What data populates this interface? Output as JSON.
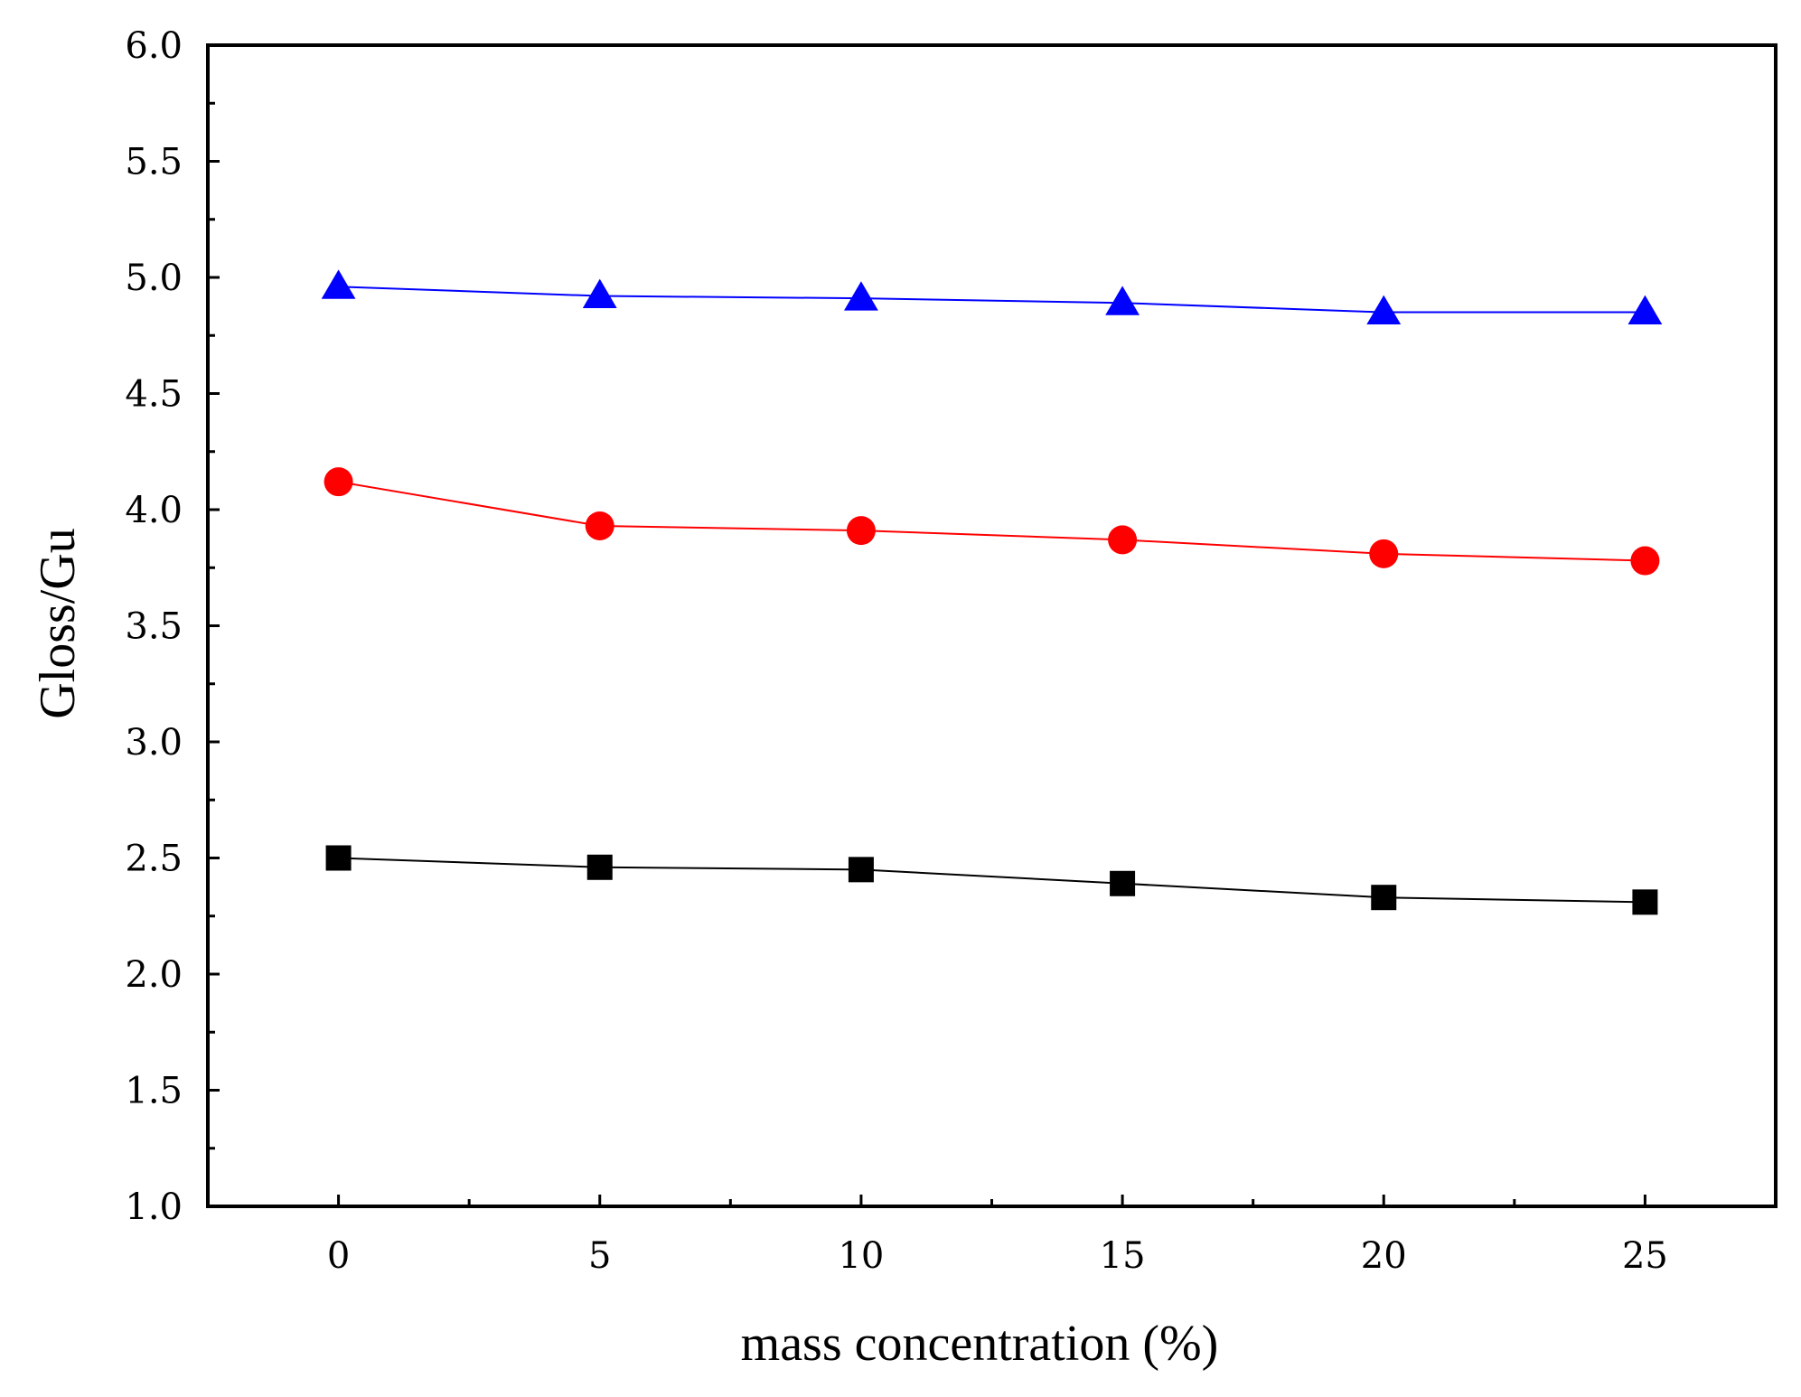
{
  "chart_data": {
    "type": "line",
    "title": "",
    "xlabel": "mass concentration (%)",
    "ylabel": "Gloss/Gu",
    "xlim": [
      -2.5,
      27.5
    ],
    "ylim": [
      1.0,
      6.0
    ],
    "x": [
      0,
      5,
      10,
      15,
      20,
      25
    ],
    "xticks": [
      "0",
      "5",
      "10",
      "15",
      "20",
      "25"
    ],
    "yticks": [
      "1.0",
      "1.5",
      "2.0",
      "2.5",
      "3.0",
      "3.5",
      "4.0",
      "4.5",
      "5.0",
      "5.5",
      "6.0"
    ],
    "grid": false,
    "legend": "none",
    "series": [
      {
        "marker": "square",
        "color": "#000000",
        "values": [
          2.5,
          2.46,
          2.45,
          2.39,
          2.33,
          2.31
        ]
      },
      {
        "marker": "circle",
        "color": "#ff0000",
        "values": [
          4.12,
          3.93,
          3.91,
          3.87,
          3.81,
          3.78
        ]
      },
      {
        "marker": "triangle",
        "color": "#0000ff",
        "values": [
          4.96,
          4.92,
          4.91,
          4.89,
          4.85,
          4.85
        ]
      }
    ]
  }
}
